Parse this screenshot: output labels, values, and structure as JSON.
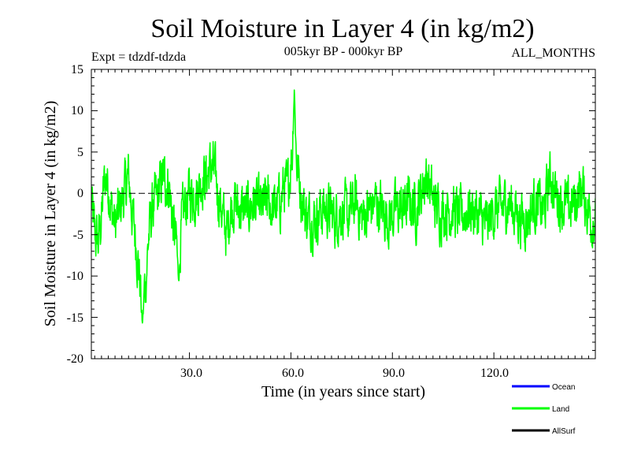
{
  "chart_data": {
    "type": "line",
    "title": "Soil Moisture in Layer 4 (in kg/m2)",
    "subtitle": "005kyr BP - 000kyr BP",
    "left_label": "Expt = tdzdf-tdzda",
    "right_label": "ALL_MONTHS",
    "xlabel": "Time (in years since start)",
    "ylabel": "Soil Moisture in Layer 4 (in kg/m2)",
    "xlim": [
      1,
      150
    ],
    "ylim": [
      -20,
      15
    ],
    "x_ticks": [
      30,
      60,
      90,
      120
    ],
    "x_tick_labels": [
      "30.0",
      "60.0",
      "90.0",
      "120.0"
    ],
    "y_ticks": [
      15,
      10,
      5,
      0,
      -5,
      -10,
      -15,
      -20
    ],
    "y_tick_labels": [
      "15",
      "10",
      "5",
      "0",
      "-5",
      "-10",
      "-15",
      "-20"
    ],
    "zero_line": 0,
    "legend_position": "bottom-right",
    "legend": [
      {
        "name": "Ocean",
        "color": "#0000ff"
      },
      {
        "name": "Land",
        "color": "#00ff00"
      },
      {
        "name": "AllSurf",
        "color": "#000000"
      }
    ],
    "series": [
      {
        "name": "Land",
        "color": "#00ff00",
        "anchors": {
          "x": [
            1,
            2,
            3,
            4,
            5,
            6,
            7,
            8,
            10,
            12,
            13,
            14,
            15,
            16,
            17,
            18,
            19,
            20,
            21,
            22,
            24,
            25,
            26,
            27,
            28,
            29,
            30,
            32,
            33,
            34,
            35,
            36,
            37,
            38,
            40,
            41,
            42,
            43,
            45,
            47,
            49,
            51,
            53,
            55,
            57,
            58,
            59,
            60,
            61,
            62,
            63,
            64,
            65,
            67,
            69,
            71,
            73,
            75,
            77,
            79,
            81,
            83,
            85,
            87,
            89,
            91,
            93,
            95,
            97,
            99,
            100,
            101,
            102,
            104,
            106,
            108,
            110,
            112,
            114,
            116,
            118,
            120,
            122,
            124,
            126,
            128,
            130,
            132,
            134,
            135,
            136,
            137,
            138,
            140,
            142,
            144,
            145,
            146,
            147,
            148,
            149,
            150
          ],
          "y": [
            -1,
            -5,
            -6,
            -3,
            2,
            1,
            -2,
            -4,
            -1,
            2,
            -2,
            -5,
            -9,
            -13,
            -11,
            -5,
            -2,
            -1,
            0,
            2,
            1,
            -3,
            -6,
            -7,
            -3,
            -1,
            0,
            0,
            1,
            2,
            2,
            3,
            3,
            1,
            -3,
            -5,
            -2,
            -1,
            -2,
            -2,
            -1,
            -2,
            -1,
            -2,
            -1,
            1,
            0,
            4,
            6,
            3,
            0,
            -2,
            -3,
            -3,
            -2,
            -2,
            -3,
            -2,
            -3,
            -1,
            -3,
            -2,
            -1,
            -2,
            -3,
            -2,
            -2,
            -1,
            -2,
            1,
            2,
            1,
            -1,
            -2,
            -2,
            -2,
            -3,
            -2,
            -2,
            -3,
            -4,
            -2,
            -2,
            -1,
            -2,
            -3,
            -3,
            -1,
            -2,
            -2,
            1,
            2,
            0,
            -1,
            -2,
            -1,
            0,
            1,
            -1,
            -2,
            -3,
            -3
          ]
        },
        "daily_variability": 2.6,
        "samples_per_year": 12,
        "extremes": [
          {
            "x": 16.1,
            "y": -15.8
          },
          {
            "x": 61.0,
            "y": 12.5
          },
          {
            "x": 26.8,
            "y": -10.6
          }
        ]
      }
    ]
  }
}
